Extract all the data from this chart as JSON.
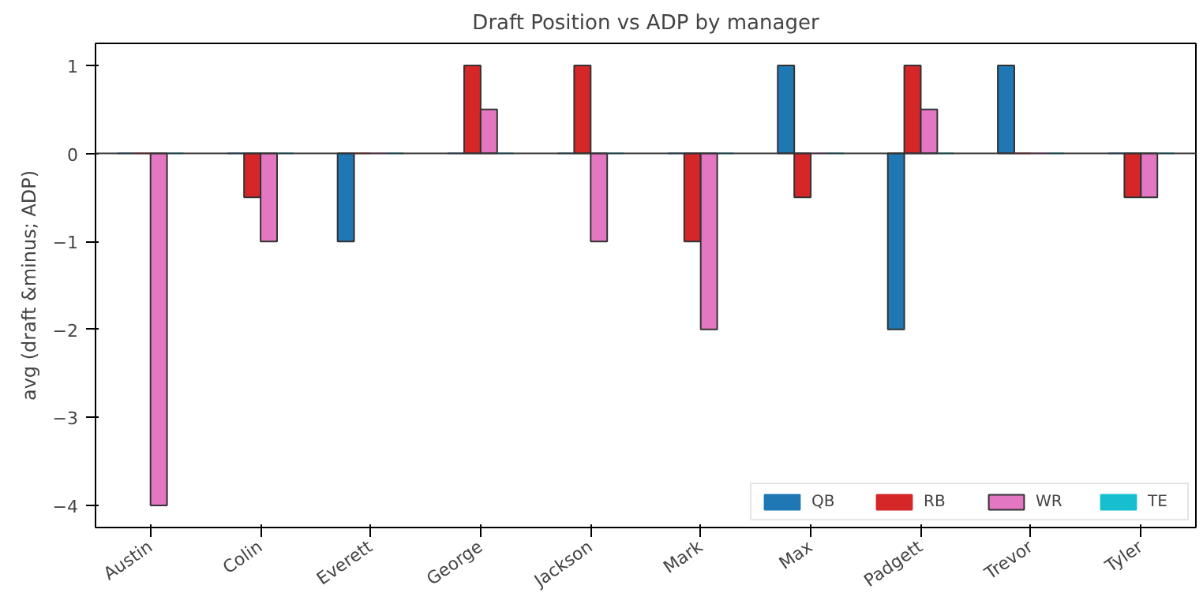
{
  "chart_data": {
    "type": "bar",
    "title": "Draft Position vs ADP by manager",
    "ylabel": "avg (draft &minus; ADP)",
    "categories": [
      "Austin",
      "Colin",
      "Everett",
      "George",
      "Jackson",
      "Mark",
      "Max",
      "Padgett",
      "Trevor",
      "Tyler"
    ],
    "series": [
      {
        "name": "QB",
        "color": "#1f77b4",
        "values": [
          0,
          0,
          -1,
          0,
          0,
          0,
          1,
          -2,
          1,
          0
        ]
      },
      {
        "name": "RB",
        "color": "#d62728",
        "values": [
          0,
          -0.5,
          0,
          1,
          1,
          -1,
          -0.5,
          1,
          0,
          -0.5
        ]
      },
      {
        "name": "WR",
        "color": "#e377c2",
        "values": [
          -4,
          -1,
          0,
          0.5,
          -1,
          -2,
          0,
          0.5,
          0,
          -0.5
        ]
      },
      {
        "name": "TE",
        "color": "#17becf",
        "values": [
          0,
          0,
          0,
          0,
          0,
          0,
          0,
          0,
          0,
          0
        ]
      }
    ],
    "ylim": [
      -4.25,
      1.25
    ],
    "yticks": [
      -4,
      -3,
      -2,
      -1,
      0,
      1
    ],
    "ref_lines": [
      {
        "axis": "y",
        "value": 0,
        "label": null,
        "color": "#333333"
      }
    ],
    "grid": false,
    "legend": "bottom right"
  }
}
